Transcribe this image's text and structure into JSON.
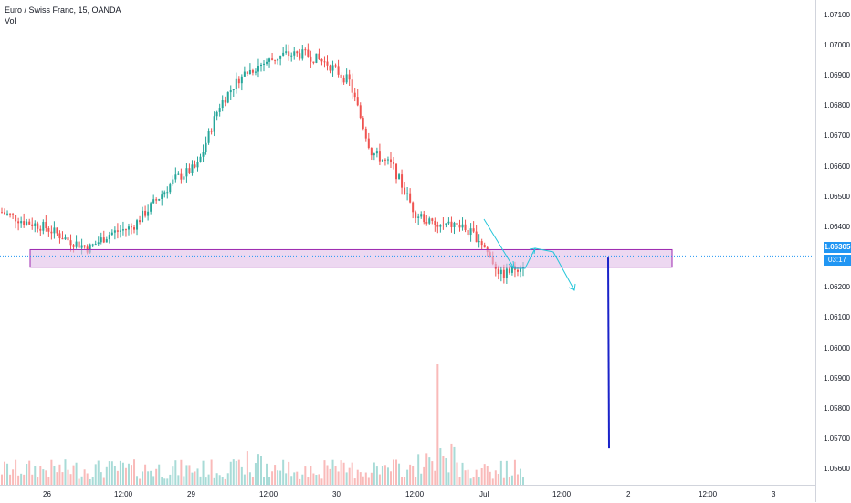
{
  "legend": {
    "symbol": "Euro / Swiss Franc, 15, OANDA",
    "volume_label": "Vol"
  },
  "price_axis": {
    "ticks": [
      "1.07100",
      "1.07000",
      "1.06900",
      "1.06800",
      "1.06700",
      "1.06600",
      "1.06500",
      "1.06400",
      "1.06200",
      "1.06100",
      "1.06000",
      "1.05900",
      "1.05800",
      "1.05700",
      "1.05600"
    ],
    "current_price": "1.06305",
    "countdown": "03:17"
  },
  "time_axis": {
    "ticks": [
      "26",
      "12:00",
      "29",
      "12:00",
      "30",
      "12:00",
      "Jul",
      "12:00",
      "2",
      "12:00",
      "3"
    ]
  },
  "colors": {
    "up": "#26a69a",
    "down": "#ef5350",
    "zone_fill": "#e1bee7",
    "zone_border": "#9c27b0",
    "projection": "#26c6da",
    "vertical_line": "#1a23c9",
    "price_line": "#2196f3"
  },
  "chart_data": {
    "type": "candlestick",
    "title": "Euro / Swiss Franc, 15, OANDA",
    "ylim": [
      1.0555,
      1.0715
    ],
    "y_scale": "linear",
    "grid": false,
    "price_path": [
      {
        "x": "26 00:00",
        "y": 1.0645
      },
      {
        "x": "26 03:00",
        "y": 1.0642
      },
      {
        "x": "26 06:00",
        "y": 1.064
      },
      {
        "x": "26 09:00",
        "y": 1.0636
      },
      {
        "x": "26 12:00",
        "y": 1.0633
      },
      {
        "x": "26 15:00",
        "y": 1.0638
      },
      {
        "x": "26 18:00",
        "y": 1.064
      },
      {
        "x": "29 00:00",
        "y": 1.0648
      },
      {
        "x": "29 03:00",
        "y": 1.0656
      },
      {
        "x": "29 06:00",
        "y": 1.066
      },
      {
        "x": "29 09:00",
        "y": 1.068
      },
      {
        "x": "29 12:00",
        "y": 1.069
      },
      {
        "x": "29 15:00",
        "y": 1.0694
      },
      {
        "x": "29 18:00",
        "y": 1.0697
      },
      {
        "x": "30 00:00",
        "y": 1.0697
      },
      {
        "x": "30 03:00",
        "y": 1.0694
      },
      {
        "x": "30 06:00",
        "y": 1.0688
      },
      {
        "x": "30 09:00",
        "y": 1.0665
      },
      {
        "x": "30 12:00",
        "y": 1.066
      },
      {
        "x": "30 15:00",
        "y": 1.0645
      },
      {
        "x": "30 18:00",
        "y": 1.064
      },
      {
        "x": "Jul 00:00",
        "y": 1.0641
      },
      {
        "x": "Jul 03:00",
        "y": 1.0636
      },
      {
        "x": "Jul 06:00",
        "y": 1.0624
      },
      {
        "x": "Jul 07:00",
        "y": 1.0628
      }
    ],
    "support_zone": {
      "from": 1.0628,
      "to": 1.0632
    },
    "current_price": 1.06305,
    "projection_target": 1.0621,
    "vertical_marker": {
      "from": 1.063,
      "to": 1.0567
    }
  }
}
